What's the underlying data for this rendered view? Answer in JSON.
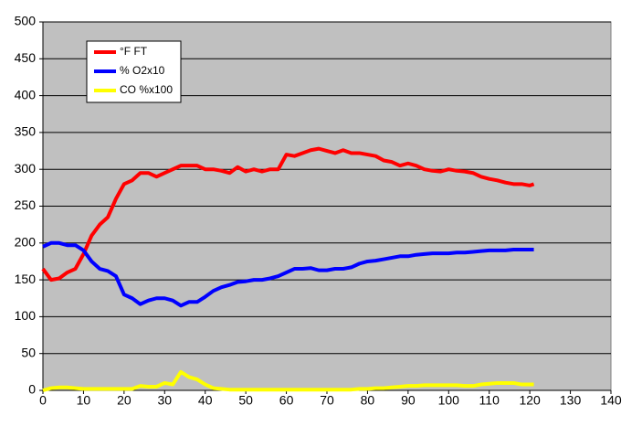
{
  "chart_data": {
    "type": "line",
    "x": [
      0,
      2,
      4,
      6,
      8,
      10,
      12,
      14,
      16,
      18,
      20,
      22,
      24,
      26,
      28,
      30,
      32,
      34,
      36,
      38,
      40,
      42,
      44,
      46,
      48,
      50,
      52,
      54,
      56,
      58,
      60,
      62,
      64,
      66,
      68,
      70,
      72,
      74,
      76,
      78,
      80,
      82,
      84,
      86,
      88,
      90,
      92,
      94,
      96,
      98,
      100,
      102,
      104,
      106,
      108,
      110,
      112,
      114,
      116,
      118,
      120,
      121
    ],
    "series": [
      {
        "name": "°F FT",
        "color": "#ff0000",
        "values": [
          165,
          150,
          152,
          160,
          165,
          185,
          210,
          225,
          235,
          260,
          280,
          285,
          295,
          295,
          290,
          295,
          300,
          305,
          305,
          305,
          300,
          300,
          298,
          295,
          303,
          297,
          300,
          297,
          300,
          300,
          320,
          318,
          322,
          326,
          328,
          325,
          322,
          326,
          322,
          322,
          320,
          318,
          312,
          310,
          305,
          308,
          305,
          300,
          298,
          297,
          300,
          298,
          297,
          295,
          290,
          287,
          285,
          282,
          280,
          280,
          278,
          280
        ]
      },
      {
        "name": "% O2x10",
        "color": "#0000ff",
        "values": [
          195,
          200,
          200,
          197,
          197,
          190,
          175,
          165,
          162,
          155,
          130,
          125,
          117,
          122,
          125,
          125,
          122,
          115,
          120,
          120,
          127,
          135,
          140,
          143,
          147,
          148,
          150,
          150,
          152,
          155,
          160,
          165,
          165,
          166,
          163,
          163,
          165,
          165,
          167,
          172,
          175,
          176,
          178,
          180,
          182,
          182,
          184,
          185,
          186,
          186,
          186,
          187,
          187,
          188,
          189,
          190,
          190,
          190,
          191,
          191,
          191,
          191
        ]
      },
      {
        "name": "CO %x100",
        "color": "#ffff00",
        "values": [
          0,
          3,
          4,
          4,
          3,
          2,
          2,
          2,
          2,
          2,
          2,
          2,
          6,
          5,
          5,
          10,
          8,
          25,
          18,
          15,
          8,
          3,
          2,
          1,
          1,
          1,
          1,
          1,
          1,
          1,
          1,
          1,
          1,
          1,
          1,
          1,
          1,
          1,
          1,
          2,
          2,
          3,
          3,
          4,
          5,
          6,
          6,
          7,
          7,
          7,
          7,
          7,
          6,
          6,
          8,
          9,
          10,
          10,
          10,
          8,
          8,
          8
        ]
      }
    ],
    "xlim": [
      0,
      140
    ],
    "xticks": [
      0,
      10,
      20,
      30,
      40,
      50,
      60,
      70,
      80,
      90,
      100,
      110,
      120,
      130,
      140
    ],
    "ylim": [
      0,
      500
    ],
    "yticks": [
      0,
      50,
      100,
      150,
      200,
      250,
      300,
      350,
      400,
      450,
      500
    ],
    "grid": true,
    "legend": "top-left",
    "plot_background": "#c0c0c0"
  }
}
